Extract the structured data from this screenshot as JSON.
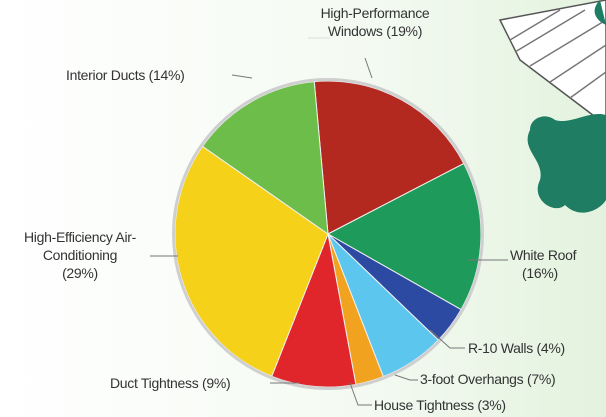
{
  "chart_data": {
    "type": "pie",
    "categories": [
      "High-Performance Windows",
      "White Roof",
      "R-10 Walls",
      "3-foot Overhangs",
      "House Tightness",
      "Duct Tightness",
      "High-Efficiency Air-Conditioning",
      "Interior Ducts"
    ],
    "values": [
      19,
      16,
      4,
      7,
      3,
      9,
      29,
      14
    ],
    "value_labels": [
      "(19%)",
      "(16%)",
      "(4%)",
      "(7%)",
      "(3%)",
      "(9%)",
      "(29%)",
      "(14%)"
    ],
    "colors": [
      "#b3291f",
      "#1e9b5b",
      "#2d4aa2",
      "#5cc6ee",
      "#f1a21f",
      "#e1262b",
      "#f6d11a",
      "#6dbd4b"
    ]
  }
}
